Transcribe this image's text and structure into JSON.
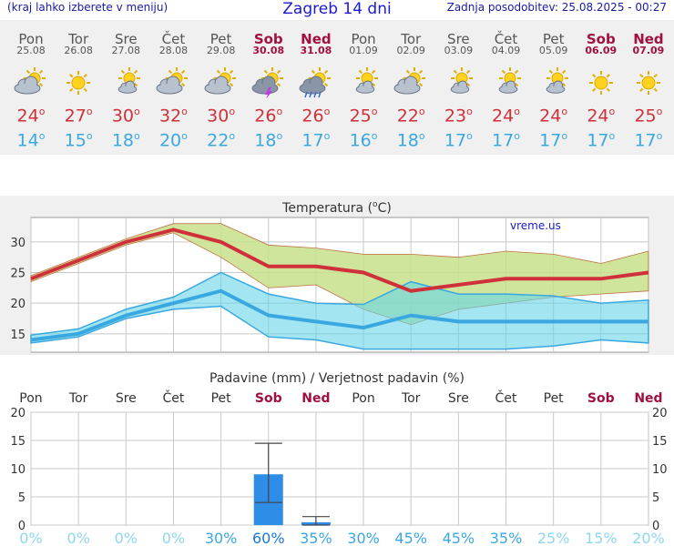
{
  "header": {
    "left": "(kraj lahko izberete v meniju)",
    "title": "Zagreb 14 dni",
    "right": "Zadnja posodobitev: 25.08.2025 - 00:27"
  },
  "days": [
    {
      "name": "Pon",
      "date": "25.08",
      "icon": "sun-cloud-icon",
      "max": "24",
      "min": "14",
      "weekend": false
    },
    {
      "name": "Tor",
      "date": "26.08",
      "icon": "sun-icon",
      "max": "27",
      "min": "15",
      "weekend": false
    },
    {
      "name": "Sre",
      "date": "27.08",
      "icon": "sun-small-cloud-icon",
      "max": "30",
      "min": "18",
      "weekend": false
    },
    {
      "name": "Čet",
      "date": "28.08",
      "icon": "sun-cloud-icon",
      "max": "32",
      "min": "20",
      "weekend": false
    },
    {
      "name": "Pet",
      "date": "29.08",
      "icon": "sun-cloud-icon",
      "max": "30",
      "min": "22",
      "weekend": false
    },
    {
      "name": "Sob",
      "date": "30.08",
      "icon": "thunder-cloud-icon",
      "max": "26",
      "min": "18",
      "weekend": true
    },
    {
      "name": "Ned",
      "date": "31.08",
      "icon": "rain-cloud-icon",
      "max": "26",
      "min": "17",
      "weekend": true
    },
    {
      "name": "Pon",
      "date": "01.09",
      "icon": "sun-small-cloud-icon",
      "max": "25",
      "min": "16",
      "weekend": false
    },
    {
      "name": "Tor",
      "date": "02.09",
      "icon": "sun-cloud-icon",
      "max": "22",
      "min": "18",
      "weekend": false
    },
    {
      "name": "Sre",
      "date": "03.09",
      "icon": "sun-small-cloud-icon",
      "max": "23",
      "min": "17",
      "weekend": false
    },
    {
      "name": "Čet",
      "date": "04.09",
      "icon": "sun-small-cloud-icon",
      "max": "24",
      "min": "17",
      "weekend": false
    },
    {
      "name": "Pet",
      "date": "05.09",
      "icon": "sun-small-cloud-icon",
      "max": "24",
      "min": "17",
      "weekend": false
    },
    {
      "name": "Sob",
      "date": "06.09",
      "icon": "sun-icon",
      "max": "24",
      "min": "17",
      "weekend": true
    },
    {
      "name": "Ned",
      "date": "07.09",
      "icon": "sun-icon",
      "max": "25",
      "min": "17",
      "weekend": true
    }
  ],
  "degree": "o",
  "colors": {
    "max": "#d0303a",
    "min": "#3aa8e0",
    "weekend": "#a01040",
    "bar": "#2e8de6"
  },
  "chart_data": [
    {
      "type": "line",
      "title": "Temperatura (oC)",
      "title_prefix": "Temperatura (",
      "title_sup": "o",
      "title_suffix": "C)",
      "watermark": "vreme.us",
      "ylim": [
        12,
        34
      ],
      "yticks": [
        15,
        20,
        25,
        30
      ],
      "x": [
        "Pon",
        "Tor",
        "Sre",
        "Čet",
        "Pet",
        "Sob",
        "Ned",
        "Pon",
        "Tor",
        "Sre",
        "Čet",
        "Pet",
        "Sob",
        "Ned"
      ],
      "series": [
        {
          "role": "max",
          "values": [
            24,
            27,
            30,
            32,
            30,
            26,
            26,
            25,
            22,
            23,
            24,
            24,
            24,
            25
          ],
          "band_low": [
            23.5,
            26.5,
            29.5,
            31.5,
            27.5,
            22.5,
            23,
            19,
            16.5,
            19,
            20,
            21,
            21.5,
            22
          ],
          "band_high": [
            24.5,
            27.5,
            30.5,
            33,
            33,
            29.5,
            29,
            28,
            28,
            27.5,
            28.5,
            28,
            26.5,
            28.5
          ]
        },
        {
          "role": "min",
          "values": [
            14,
            15,
            18,
            20,
            22,
            18,
            17,
            16,
            18,
            17,
            17,
            17,
            17,
            17
          ],
          "band_low": [
            13.5,
            14.5,
            17.5,
            19,
            19.5,
            14.5,
            14,
            12.5,
            12.5,
            12.5,
            12.5,
            13,
            14,
            13.5
          ],
          "band_high": [
            14.8,
            15.8,
            19,
            21,
            25,
            21.5,
            20,
            19.8,
            23.5,
            21.5,
            21.5,
            21.2,
            20,
            20.5
          ]
        }
      ]
    },
    {
      "type": "bar",
      "title": "Padavine (mm) / Verjetnost padavin (%)",
      "categories": [
        "Pon",
        "Tor",
        "Sre",
        "Čet",
        "Pet",
        "Sob",
        "Ned",
        "Pon",
        "Tor",
        "Sre",
        "Čet",
        "Pet",
        "Sob",
        "Ned"
      ],
      "values": [
        0,
        0,
        0,
        0,
        0,
        9,
        0.5,
        0,
        0,
        0,
        0,
        0,
        0,
        0
      ],
      "err_low": [
        0,
        0,
        0,
        0,
        0,
        4,
        0,
        0,
        0,
        0,
        0,
        0,
        0,
        0
      ],
      "err_high": [
        0,
        0,
        0,
        0,
        0,
        14.5,
        1.5,
        0,
        0,
        0,
        0,
        0,
        0,
        0
      ],
      "probability": [
        "0%",
        "0%",
        "0%",
        "0%",
        "30%",
        "60%",
        "35%",
        "30%",
        "45%",
        "45%",
        "35%",
        "25%",
        "15%",
        "20%"
      ],
      "prob_values": [
        0,
        0,
        0,
        0,
        30,
        60,
        35,
        30,
        45,
        45,
        35,
        25,
        15,
        20
      ],
      "ylim": [
        0,
        20
      ],
      "yticks": [
        0,
        5,
        10,
        15,
        20
      ],
      "grid": true
    }
  ]
}
